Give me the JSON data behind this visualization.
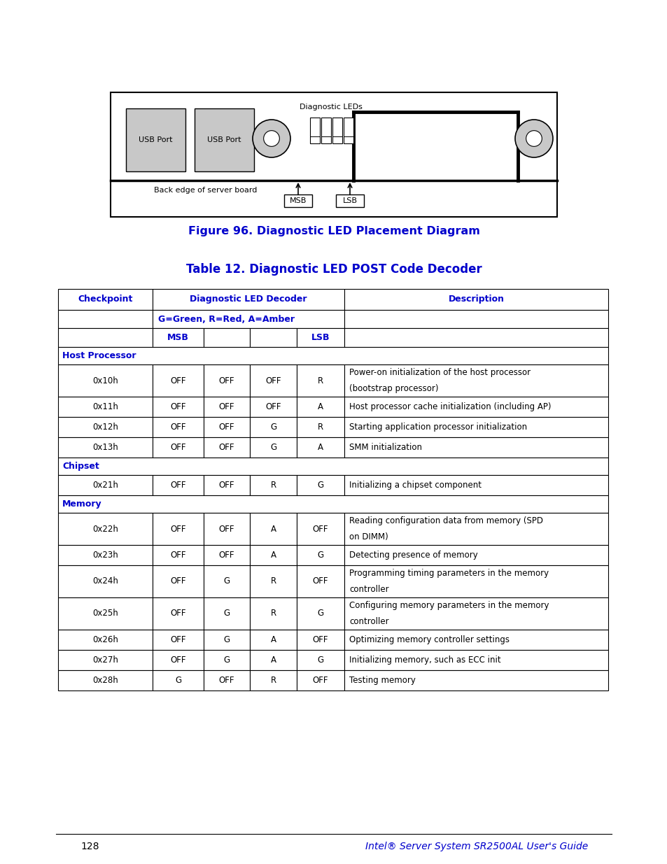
{
  "page_number": "128",
  "footer_text": "Intel® Server System SR2500AL User's Guide",
  "fig_caption": "Figure 96. Diagnostic LED Placement Diagram",
  "table_title": "Table 12. Diagnostic LED POST Code Decoder",
  "blue_color": "#0000CC",
  "black": "#000000",
  "white": "#FFFFFF",
  "gray_bg": "#C8C8C8",
  "table_rows": [
    {
      "type": "section",
      "label": "Host Processor"
    },
    {
      "type": "data",
      "checkpoint": "0x10h",
      "leds": [
        "OFF",
        "OFF",
        "OFF",
        "R"
      ],
      "description": "Power-on initialization of the host processor\n(bootstrap processor)",
      "tall": true
    },
    {
      "type": "data",
      "checkpoint": "0x11h",
      "leds": [
        "OFF",
        "OFF",
        "OFF",
        "A"
      ],
      "description": "Host processor cache initialization (including AP)",
      "tall": false
    },
    {
      "type": "data",
      "checkpoint": "0x12h",
      "leds": [
        "OFF",
        "OFF",
        "G",
        "R"
      ],
      "description": "Starting application processor initialization",
      "tall": false
    },
    {
      "type": "data",
      "checkpoint": "0x13h",
      "leds": [
        "OFF",
        "OFF",
        "G",
        "A"
      ],
      "description": "SMM initialization",
      "tall": false
    },
    {
      "type": "section",
      "label": "Chipset"
    },
    {
      "type": "data",
      "checkpoint": "0x21h",
      "leds": [
        "OFF",
        "OFF",
        "R",
        "G"
      ],
      "description": "Initializing a chipset component",
      "tall": false
    },
    {
      "type": "section",
      "label": "Memory"
    },
    {
      "type": "data",
      "checkpoint": "0x22h",
      "leds": [
        "OFF",
        "OFF",
        "A",
        "OFF"
      ],
      "description": "Reading configuration data from memory (SPD\non DIMM)",
      "tall": true
    },
    {
      "type": "data",
      "checkpoint": "0x23h",
      "leds": [
        "OFF",
        "OFF",
        "A",
        "G"
      ],
      "description": "Detecting presence of memory",
      "tall": false
    },
    {
      "type": "data",
      "checkpoint": "0x24h",
      "leds": [
        "OFF",
        "G",
        "R",
        "OFF"
      ],
      "description": "Programming timing parameters in the memory\ncontroller",
      "tall": true
    },
    {
      "type": "data",
      "checkpoint": "0x25h",
      "leds": [
        "OFF",
        "G",
        "R",
        "G"
      ],
      "description": "Configuring memory parameters in the memory\ncontroller",
      "tall": true
    },
    {
      "type": "data",
      "checkpoint": "0x26h",
      "leds": [
        "OFF",
        "G",
        "A",
        "OFF"
      ],
      "description": "Optimizing memory controller settings",
      "tall": false
    },
    {
      "type": "data",
      "checkpoint": "0x27h",
      "leds": [
        "OFF",
        "G",
        "A",
        "G"
      ],
      "description": "Initializing memory, such as ECC init",
      "tall": false
    },
    {
      "type": "data",
      "checkpoint": "0x28h",
      "leds": [
        "G",
        "OFF",
        "R",
        "OFF"
      ],
      "description": "Testing memory",
      "tall": false
    }
  ]
}
